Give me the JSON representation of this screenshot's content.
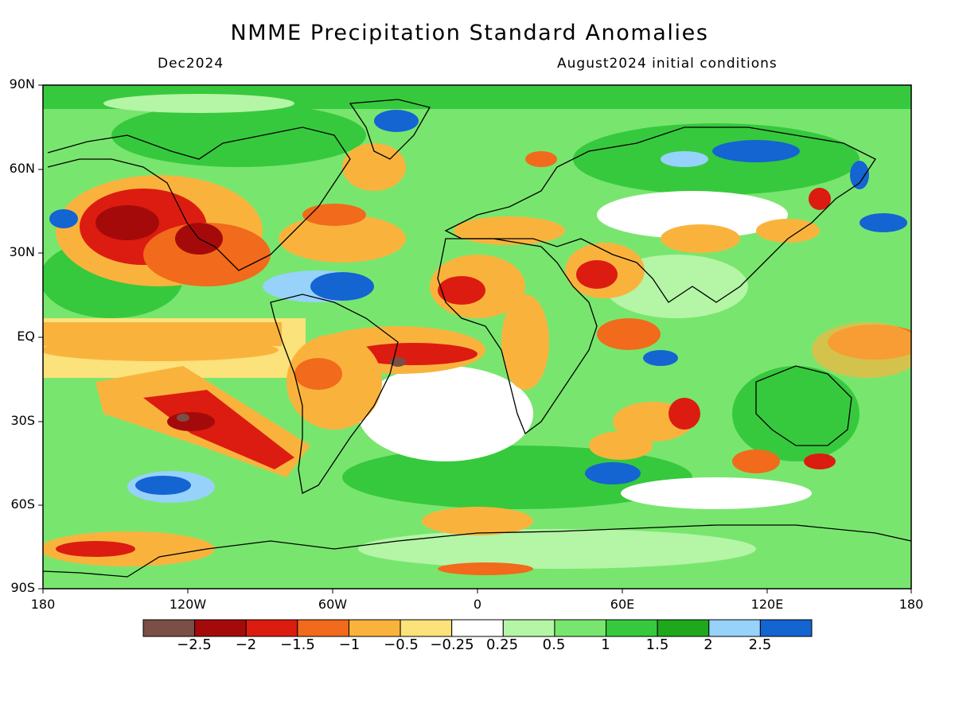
{
  "title": "NMME Precipitation Standard Anomalies",
  "subtitle_left": "Dec2024",
  "subtitle_right": "August2024 initial conditions",
  "lat_labels": [
    "90N",
    "60N",
    "30N",
    "EQ",
    "30S",
    "60S",
    "90S"
  ],
  "lon_labels": [
    "180",
    "120W",
    "60W",
    "0",
    "60E",
    "120E",
    "180"
  ],
  "legend": {
    "labels": [
      "−2.5",
      "−2",
      "−1.5",
      "−1",
      "−0.5",
      "−0.25",
      "0.25",
      "0.5",
      "1",
      "1.5",
      "2",
      "2.5"
    ],
    "colors": [
      "#7a4f45",
      "#a50a0a",
      "#dc1c10",
      "#f26a1b",
      "#f9b33d",
      "#fbe27a",
      "#ffffff",
      "#b4f5a6",
      "#78e66e",
      "#37c93d",
      "#1fa81c",
      "#96d2fa",
      "#1464d2"
    ]
  },
  "colors": {
    "ocean_land_bg": "#ffffff",
    "coastline": "#000000"
  }
}
